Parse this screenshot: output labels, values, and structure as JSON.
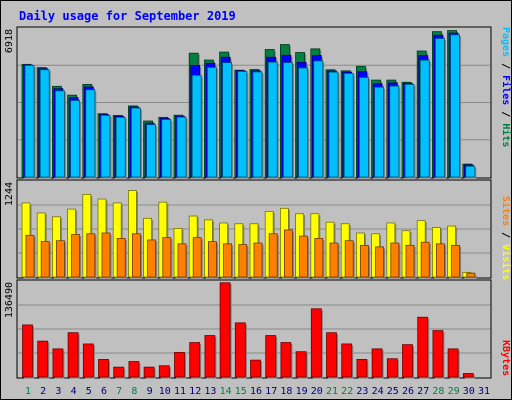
{
  "title": "Daily usage for September 2019",
  "colors": {
    "background": "#c0c0c0",
    "plot_bg": "#c0c0c0",
    "title": "#0000ff",
    "hits": "#008040",
    "files": "#0000ff",
    "pages": "#00c0ff",
    "visits": "#ffff00",
    "sites": "#ff8000",
    "kbytes": "#ff0000",
    "weekend_label": "#008040",
    "weekday_label": "#000080"
  },
  "chart_data": [
    {
      "type": "bar",
      "panel": "top",
      "ymax_label": "6918",
      "ylim": [
        0,
        6918
      ],
      "legend": [
        "Pages",
        "Files",
        "Hits"
      ],
      "categories": [
        "1",
        "2",
        "3",
        "4",
        "5",
        "6",
        "7",
        "8",
        "9",
        "10",
        "11",
        "12",
        "13",
        "14",
        "15",
        "16",
        "17",
        "18",
        "19",
        "20",
        "21",
        "22",
        "23",
        "24",
        "25",
        "26",
        "27",
        "28",
        "29",
        "30",
        "31"
      ],
      "series": [
        {
          "name": "Hits",
          "values": [
            5230,
            5080,
            4210,
            3800,
            4300,
            2940,
            2860,
            3300,
            2600,
            2770,
            2870,
            5750,
            5430,
            5800,
            4960,
            4990,
            5920,
            6150,
            5780,
            5950,
            4980,
            4930,
            5140,
            4500,
            4500,
            4400,
            5850,
            6750,
            6800,
            600,
            0
          ]
        },
        {
          "name": "Files",
          "values": [
            5200,
            5030,
            4100,
            3680,
            4180,
            2900,
            2820,
            3250,
            2500,
            2720,
            2820,
            5180,
            5280,
            5560,
            4930,
            4930,
            5560,
            5650,
            5320,
            5640,
            4920,
            4870,
            4890,
            4330,
            4370,
            4350,
            5640,
            6580,
            6680,
            560,
            0
          ]
        },
        {
          "name": "Pages",
          "values": [
            5180,
            4980,
            4000,
            3550,
            4050,
            2860,
            2770,
            3200,
            2430,
            2670,
            2780,
            4720,
            5090,
            5310,
            4900,
            4880,
            5330,
            5310,
            5060,
            5390,
            4870,
            4810,
            4620,
            4170,
            4220,
            4300,
            5420,
            6430,
            6600,
            500,
            0
          ]
        }
      ]
    },
    {
      "type": "bar",
      "panel": "middle",
      "ymax_label": "1244",
      "ylim": [
        0,
        1244
      ],
      "legend": [
        "Sites",
        "Visits"
      ],
      "categories": [
        "1",
        "2",
        "3",
        "4",
        "5",
        "6",
        "7",
        "8",
        "9",
        "10",
        "11",
        "12",
        "13",
        "14",
        "15",
        "16",
        "17",
        "18",
        "19",
        "20",
        "21",
        "22",
        "23",
        "24",
        "25",
        "26",
        "27",
        "28",
        "29",
        "30",
        "31"
      ],
      "series": [
        {
          "name": "Visits",
          "values": [
            960,
            830,
            780,
            880,
            1070,
            1010,
            960,
            1120,
            760,
            970,
            630,
            790,
            740,
            700,
            690,
            690,
            850,
            890,
            820,
            820,
            710,
            690,
            570,
            560,
            700,
            600,
            730,
            640,
            660,
            60,
            0
          ]
        },
        {
          "name": "Sites",
          "values": [
            540,
            460,
            470,
            550,
            560,
            570,
            500,
            560,
            480,
            510,
            430,
            510,
            460,
            430,
            420,
            440,
            560,
            610,
            530,
            500,
            440,
            470,
            410,
            390,
            440,
            410,
            450,
            430,
            410,
            50,
            0
          ]
        }
      ]
    },
    {
      "type": "bar",
      "panel": "bottom",
      "ymax_label": "136490",
      "ylim": [
        0,
        136490
      ],
      "legend": [
        "KBytes"
      ],
      "categories": [
        "1",
        "2",
        "3",
        "4",
        "5",
        "6",
        "7",
        "8",
        "9",
        "10",
        "11",
        "12",
        "13",
        "14",
        "15",
        "16",
        "17",
        "18",
        "19",
        "20",
        "21",
        "22",
        "23",
        "24",
        "25",
        "26",
        "27",
        "28",
        "29",
        "30",
        "31"
      ],
      "series": [
        {
          "name": "KBytes",
          "values": [
            74000,
            51000,
            40000,
            63000,
            47000,
            25000,
            14000,
            22000,
            14000,
            16000,
            35000,
            49000,
            59000,
            134000,
            77000,
            24000,
            59000,
            49000,
            36000,
            97000,
            63000,
            47000,
            25000,
            40000,
            26000,
            46000,
            85000,
            66000,
            40000,
            5000,
            0
          ]
        }
      ]
    }
  ],
  "weekend_days": [
    "1",
    "7",
    "8",
    "14",
    "15",
    "21",
    "22",
    "28",
    "29"
  ]
}
